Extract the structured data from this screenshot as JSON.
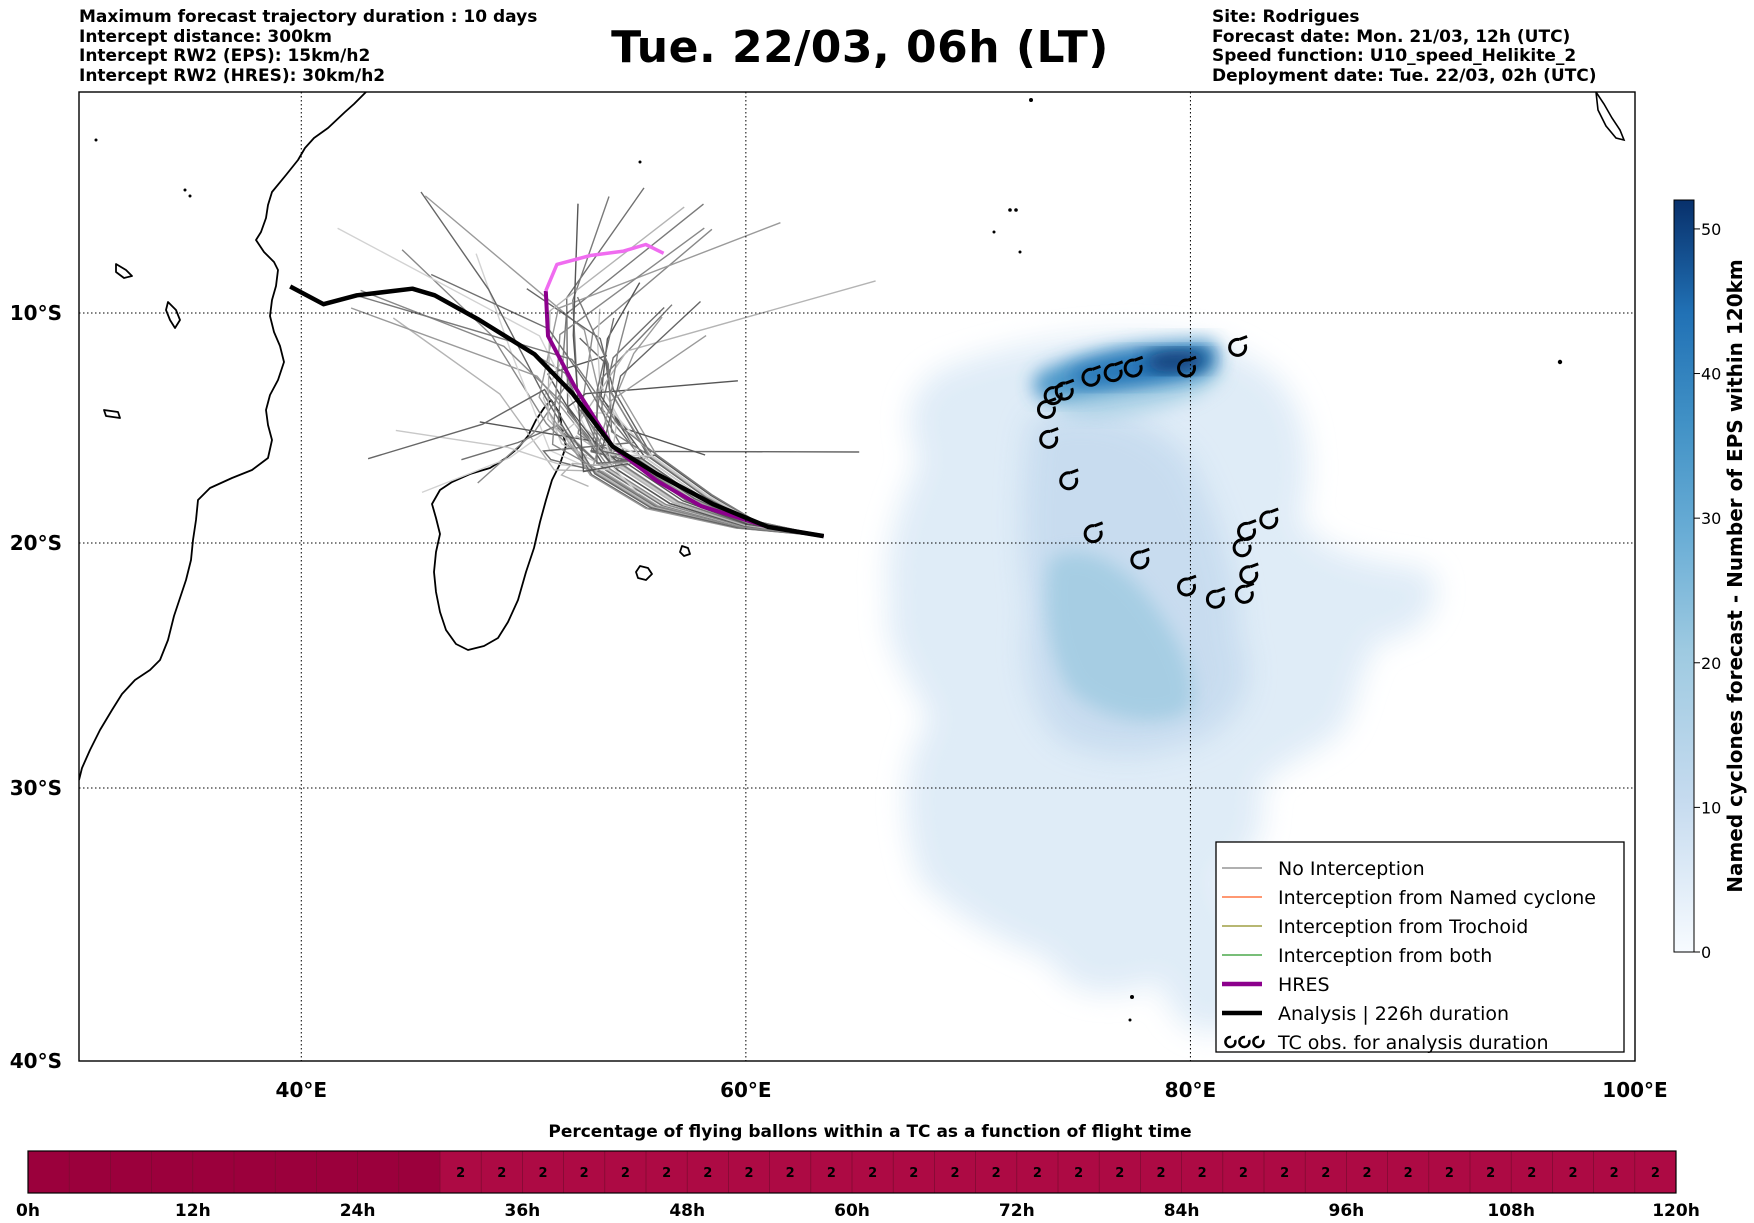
{
  "header_left": [
    "Maximum forecast trajectory duration : 10 days",
    "Intercept distance: 300km",
    "Intercept RW2 (EPS):  15km/h2",
    "Intercept RW2 (HRES): 30km/h2"
  ],
  "header_right": [
    "Site: Rodrigues",
    "Forecast date: Mon. 21/03, 12h (UTC)",
    "Speed function: U10_speed_Helikite_2",
    "Deployment date: Tue. 22/03, 02h (UTC)"
  ],
  "title": "Tue. 22/03, 06h (LT)",
  "map": {
    "lon_range": [
      30,
      100
    ],
    "lat_range": [
      -40,
      0
    ],
    "lat_ticks": [
      {
        "value": -10,
        "label": "10°S"
      },
      {
        "value": -20,
        "label": "20°S"
      },
      {
        "value": -30,
        "label": "30°S"
      },
      {
        "value": -40,
        "label": "40°S"
      }
    ],
    "lon_ticks": [
      {
        "value": 40,
        "label": "40°E"
      },
      {
        "value": 60,
        "label": "60°E"
      },
      {
        "value": 80,
        "label": "80°E"
      },
      {
        "value": 100,
        "label": "100°E"
      }
    ],
    "grid": "dotted"
  },
  "legend": {
    "placement": "bottom-right",
    "items": [
      {
        "label": "No Interception",
        "color": "#808080",
        "style": "thin-line"
      },
      {
        "label": "Interception from Named cyclone",
        "color": "#ff5a1e",
        "style": "thin-line"
      },
      {
        "label": "Interception from Trochoid",
        "color": "#8c8c1e",
        "style": "thin-line"
      },
      {
        "label": "Interception from both",
        "color": "#289628",
        "style": "thin-line"
      },
      {
        "label": "HRES",
        "color": "#8c008c",
        "style": "thick-line"
      },
      {
        "label": "Analysis | 226h duration",
        "color": "#000000",
        "style": "thick-line"
      },
      {
        "label": "TC obs. for analysis duration",
        "color": "#000000",
        "style": "cyclone-symbols"
      }
    ]
  },
  "colorbar": {
    "label": "Named cyclones forecast - Number of EPS within 120km",
    "min": 0,
    "max": 52,
    "ticks": [
      0,
      10,
      20,
      30,
      40,
      50
    ],
    "colormap": "Blues"
  },
  "tracks": {
    "hres": [
      [
        63.5,
        -19.7
      ],
      [
        61,
        -19.3
      ],
      [
        58,
        -18.4
      ],
      [
        56,
        -17.3
      ],
      [
        54,
        -15.8
      ],
      [
        52.3,
        -13.2
      ],
      [
        51.1,
        -11
      ],
      [
        51,
        -9
      ],
      [
        51.5,
        -7.8
      ],
      [
        53,
        -7.4
      ],
      [
        54.5,
        -7.2
      ],
      [
        55.5,
        -6.9
      ],
      [
        56.3,
        -7.3
      ]
    ],
    "hres_color_late": "#f06cf0",
    "analysis": [
      [
        63.5,
        -19.7
      ],
      [
        61,
        -19.3
      ],
      [
        58.5,
        -18.3
      ],
      [
        56,
        -17
      ],
      [
        54,
        -15.8
      ],
      [
        52.2,
        -13.5
      ],
      [
        50.5,
        -11.8
      ],
      [
        48,
        -10.3
      ],
      [
        46,
        -9.2
      ],
      [
        45,
        -8.9
      ],
      [
        42.5,
        -9.2
      ],
      [
        41,
        -9.6
      ],
      [
        39.5,
        -8.8
      ]
    ]
  },
  "cyclone_obs": [
    [
      82.1,
      -11.5
    ],
    [
      79.8,
      -12.4
    ],
    [
      77.4,
      -12.4
    ],
    [
      76.5,
      -12.6
    ],
    [
      75.5,
      -12.8
    ],
    [
      74.3,
      -13.4
    ],
    [
      73.8,
      -13.6
    ],
    [
      73.5,
      -14.2
    ],
    [
      73.6,
      -15.5
    ],
    [
      74.5,
      -17.3
    ],
    [
      75.6,
      -19.6
    ],
    [
      77.7,
      -20.7
    ],
    [
      79.8,
      -21.8
    ],
    [
      81.1,
      -22.3
    ],
    [
      82.3,
      -20.2
    ],
    [
      82.5,
      -19.5
    ],
    [
      83.5,
      -19
    ],
    [
      82.6,
      -21.3
    ],
    [
      82.4,
      -22.1
    ]
  ],
  "flight_time_bar": {
    "title": "Percentage of flying ballons within a TC as a function of flight time",
    "ticks": [
      "0h",
      "12h",
      "24h",
      "36h",
      "48h",
      "60h",
      "72h",
      "84h",
      "96h",
      "108h",
      "120h"
    ],
    "hours": 120,
    "first_hours_value": 0,
    "first_hours_end": 30,
    "value_label": "2",
    "color_zero": "#9b003c",
    "color_value": "#ad0a44"
  }
}
